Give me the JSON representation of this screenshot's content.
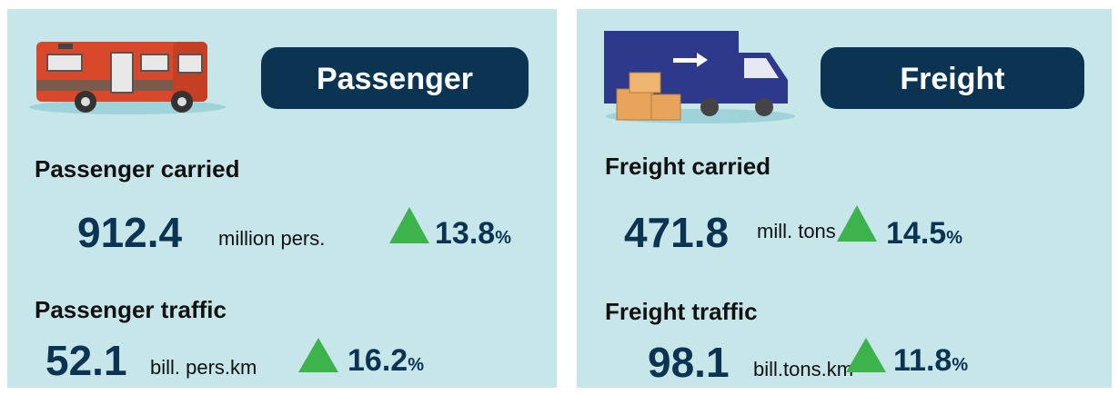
{
  "panels": [
    {
      "title": "Passenger",
      "metrics": [
        {
          "label": "Passenger carried",
          "value": 912.4,
          "unit": "million pers.",
          "change": 13.8,
          "change_unit": "%"
        },
        {
          "label": "Passenger traffic",
          "value": 52.1,
          "unit": "bill. pers.km",
          "change": 16.2,
          "change_unit": "%"
        }
      ]
    },
    {
      "title": "Freight",
      "metrics": [
        {
          "label": "Freight carried",
          "value": 471.8,
          "unit": "mill. tons",
          "change": 14.5,
          "change_unit": "%"
        },
        {
          "label": "Freight traffic",
          "value": 98.1,
          "unit": "bill.tons.km",
          "change": 11.8,
          "change_unit": "%"
        }
      ]
    }
  ]
}
